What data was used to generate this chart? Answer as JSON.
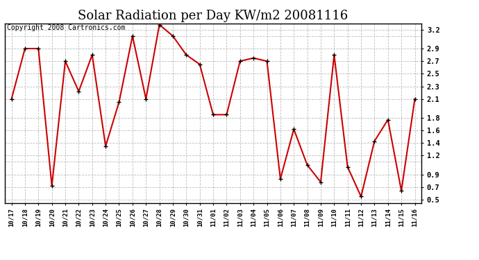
{
  "title": "Solar Radiation per Day KW/m2 20081116",
  "copyright_text": "Copyright 2008 Cartronics.com",
  "labels": [
    "10/17",
    "10/18",
    "10/19",
    "10/20",
    "10/21",
    "10/22",
    "10/23",
    "10/24",
    "10/25",
    "10/26",
    "10/27",
    "10/28",
    "10/29",
    "10/30",
    "10/31",
    "11/01",
    "11/02",
    "11/03",
    "11/04",
    "11/05",
    "11/06",
    "11/07",
    "11/08",
    "11/09",
    "11/10",
    "11/11",
    "11/12",
    "11/13",
    "11/14",
    "11/15",
    "11/16"
  ],
  "values": [
    2.1,
    2.9,
    2.9,
    0.72,
    2.7,
    2.22,
    2.8,
    1.35,
    2.05,
    3.1,
    2.1,
    3.28,
    3.1,
    2.8,
    2.65,
    1.85,
    1.85,
    2.7,
    2.75,
    2.7,
    0.83,
    1.62,
    1.05,
    0.78,
    2.8,
    1.02,
    0.55,
    1.43,
    1.77,
    0.64,
    2.1
  ],
  "ylim": [
    0.45,
    3.3
  ],
  "ytick_positions": [
    0.5,
    0.7,
    0.9,
    1.2,
    1.4,
    1.6,
    1.8,
    2.1,
    2.3,
    2.5,
    2.7,
    2.9,
    3.2
  ],
  "ytick_labels": [
    "0.5",
    "0.7",
    "0.9",
    "1.2",
    "1.4",
    "1.6",
    "1.8",
    "2.1",
    "2.3",
    "2.5",
    "2.7",
    "2.9",
    "3.2"
  ],
  "ygrid_positions": [
    0.5,
    0.7,
    0.9,
    1.1,
    1.2,
    1.4,
    1.6,
    1.8,
    2.1,
    2.3,
    2.5,
    2.7,
    2.9,
    3.1,
    3.2
  ],
  "line_color": "#cc0000",
  "marker_color": "#000000",
  "bg_color": "#ffffff",
  "plot_bg_color": "#ffffff",
  "grid_color": "#bbbbbb",
  "title_fontsize": 13,
  "copyright_fontsize": 7
}
